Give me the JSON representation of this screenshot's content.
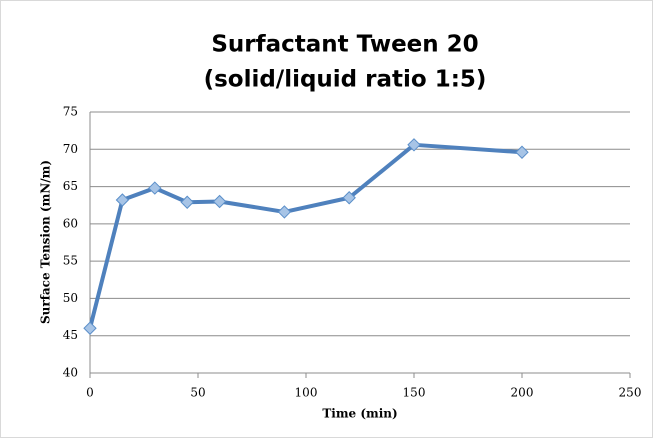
{
  "chart_data": {
    "type": "line",
    "title": "Surfactant Tween 20",
    "subtitle": "(solid/liquid ratio 1:5)",
    "x_label": "Time (min)",
    "y_label": "Surface Tension (mN/m)",
    "series": [
      {
        "name": "Surface Tension",
        "color": "#4f81bd",
        "x": [
          0,
          15,
          30,
          45,
          60,
          90,
          120,
          150,
          200
        ],
        "values": [
          46,
          63.2,
          64.8,
          62.9,
          63,
          61.6,
          63.5,
          70.6,
          69.6
        ]
      }
    ],
    "xlim": [
      0,
      250
    ],
    "xticks": [
      0,
      50,
      100,
      150,
      200,
      250
    ],
    "ylim": [
      40,
      75
    ],
    "yticks": [
      40,
      45,
      50,
      55,
      60,
      65,
      70,
      75
    ],
    "grid": true
  }
}
